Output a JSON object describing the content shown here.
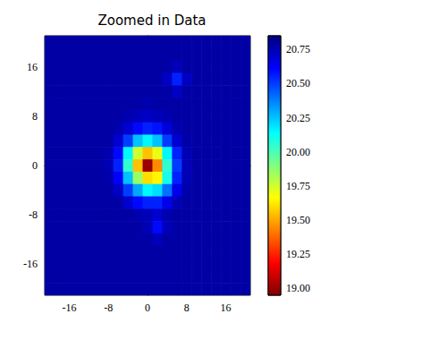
{
  "chart_data": {
    "type": "heatmap",
    "title": "Zoomed in Data",
    "x": [
      -20,
      -18,
      -16,
      -14,
      -12,
      -10,
      -8,
      -6,
      -4,
      -2,
      0,
      2,
      4,
      6,
      8,
      10,
      12,
      14,
      16,
      18,
      20
    ],
    "y": [
      20,
      18,
      16,
      14,
      12,
      10,
      8,
      6,
      4,
      2,
      0,
      -2,
      -4,
      -6,
      -8,
      -10,
      -12,
      -14,
      -16,
      -18,
      -20
    ],
    "z": [
      [
        20.78,
        20.78,
        20.78,
        20.78,
        20.78,
        20.78,
        20.78,
        20.78,
        20.78,
        20.78,
        20.78,
        20.78,
        20.78,
        20.78,
        20.78,
        20.78,
        20.78,
        20.78,
        20.78,
        20.78,
        20.78
      ],
      [
        20.78,
        20.78,
        20.78,
        20.78,
        20.78,
        20.78,
        20.78,
        20.78,
        20.78,
        20.78,
        20.78,
        20.78,
        20.78,
        20.78,
        20.78,
        20.78,
        20.78,
        20.78,
        20.78,
        20.78,
        20.78
      ],
      [
        20.78,
        20.78,
        20.78,
        20.78,
        20.78,
        20.78,
        20.78,
        20.78,
        20.78,
        20.78,
        20.78,
        20.78,
        20.78,
        20.74,
        20.78,
        20.78,
        20.78,
        20.78,
        20.78,
        20.78,
        20.78
      ],
      [
        20.78,
        20.78,
        20.78,
        20.78,
        20.78,
        20.78,
        20.78,
        20.78,
        20.78,
        20.78,
        20.78,
        20.78,
        20.72,
        20.55,
        20.72,
        20.78,
        20.78,
        20.78,
        20.78,
        20.78,
        20.78
      ],
      [
        20.78,
        20.78,
        20.78,
        20.78,
        20.78,
        20.78,
        20.78,
        20.78,
        20.78,
        20.78,
        20.78,
        20.78,
        20.78,
        20.72,
        20.78,
        20.78,
        20.78,
        20.78,
        20.78,
        20.78,
        20.78
      ],
      [
        20.78,
        20.78,
        20.78,
        20.78,
        20.78,
        20.78,
        20.78,
        20.78,
        20.78,
        20.78,
        20.76,
        20.78,
        20.78,
        20.78,
        20.78,
        20.78,
        20.78,
        20.78,
        20.78,
        20.78,
        20.78
      ],
      [
        20.78,
        20.78,
        20.78,
        20.78,
        20.78,
        20.78,
        20.78,
        20.78,
        20.76,
        20.74,
        20.72,
        20.74,
        20.76,
        20.78,
        20.78,
        20.78,
        20.78,
        20.78,
        20.78,
        20.78,
        20.78
      ],
      [
        20.78,
        20.78,
        20.78,
        20.78,
        20.78,
        20.78,
        20.78,
        20.76,
        20.7,
        20.6,
        20.55,
        20.58,
        20.68,
        20.76,
        20.78,
        20.78,
        20.78,
        20.78,
        20.78,
        20.78,
        20.78
      ],
      [
        20.78,
        20.78,
        20.78,
        20.78,
        20.78,
        20.78,
        20.78,
        20.7,
        20.5,
        20.25,
        20.15,
        20.25,
        20.5,
        20.7,
        20.77,
        20.78,
        20.78,
        20.78,
        20.78,
        20.78,
        20.78
      ],
      [
        20.78,
        20.78,
        20.78,
        20.78,
        20.78,
        20.78,
        20.76,
        20.6,
        20.15,
        19.75,
        19.55,
        19.7,
        20.15,
        20.55,
        20.75,
        20.78,
        20.78,
        20.78,
        20.78,
        20.78,
        20.78
      ],
      [
        20.78,
        20.78,
        20.78,
        20.78,
        20.78,
        20.78,
        20.75,
        20.55,
        20.05,
        19.55,
        19.0,
        19.45,
        20.05,
        20.5,
        20.74,
        20.78,
        20.78,
        20.78,
        20.78,
        20.78,
        20.78
      ],
      [
        20.78,
        20.78,
        20.78,
        20.78,
        20.78,
        20.78,
        20.77,
        20.62,
        20.25,
        19.85,
        19.6,
        19.65,
        20.1,
        20.55,
        20.75,
        20.78,
        20.78,
        20.78,
        20.78,
        20.78,
        20.78
      ],
      [
        20.78,
        20.78,
        20.78,
        20.78,
        20.78,
        20.78,
        20.78,
        20.72,
        20.5,
        20.3,
        20.15,
        20.2,
        20.4,
        20.65,
        20.77,
        20.78,
        20.78,
        20.78,
        20.78,
        20.78,
        20.78
      ],
      [
        20.78,
        20.78,
        20.78,
        20.78,
        20.78,
        20.78,
        20.78,
        20.78,
        20.7,
        20.6,
        20.55,
        20.55,
        20.65,
        20.75,
        20.78,
        20.78,
        20.78,
        20.78,
        20.78,
        20.78,
        20.78
      ],
      [
        20.78,
        20.78,
        20.78,
        20.78,
        20.78,
        20.78,
        20.78,
        20.78,
        20.78,
        20.76,
        20.74,
        20.7,
        20.76,
        20.78,
        20.78,
        20.78,
        20.78,
        20.78,
        20.78,
        20.78,
        20.78
      ],
      [
        20.78,
        20.78,
        20.78,
        20.78,
        20.78,
        20.78,
        20.78,
        20.78,
        20.78,
        20.78,
        20.75,
        20.6,
        20.74,
        20.78,
        20.78,
        20.78,
        20.78,
        20.78,
        20.78,
        20.78,
        20.78
      ],
      [
        20.78,
        20.78,
        20.78,
        20.78,
        20.78,
        20.78,
        20.78,
        20.78,
        20.78,
        20.78,
        20.78,
        20.74,
        20.78,
        20.78,
        20.78,
        20.78,
        20.78,
        20.78,
        20.78,
        20.78,
        20.78
      ],
      [
        20.78,
        20.78,
        20.78,
        20.78,
        20.78,
        20.78,
        20.78,
        20.78,
        20.78,
        20.78,
        20.78,
        20.78,
        20.78,
        20.78,
        20.78,
        20.78,
        20.78,
        20.78,
        20.78,
        20.78,
        20.78
      ],
      [
        20.78,
        20.78,
        20.78,
        20.78,
        20.78,
        20.78,
        20.78,
        20.78,
        20.78,
        20.78,
        20.78,
        20.78,
        20.78,
        20.78,
        20.78,
        20.78,
        20.78,
        20.78,
        20.78,
        20.78,
        20.78
      ],
      [
        20.78,
        20.78,
        20.78,
        20.78,
        20.78,
        20.78,
        20.78,
        20.78,
        20.78,
        20.78,
        20.78,
        20.78,
        20.78,
        20.78,
        20.78,
        20.78,
        20.78,
        20.78,
        20.78,
        20.78,
        20.78
      ],
      [
        20.78,
        20.78,
        20.78,
        20.78,
        20.78,
        20.78,
        20.78,
        20.78,
        20.78,
        20.78,
        20.78,
        20.78,
        20.78,
        20.78,
        20.78,
        20.78,
        20.78,
        20.78,
        20.78,
        20.78,
        20.78
      ]
    ],
    "xlim": [
      -21,
      21
    ],
    "ylim": [
      -21,
      21
    ],
    "xticks": [
      -16,
      -8,
      0,
      8,
      16
    ],
    "yticks": [
      -16,
      -8,
      0,
      8,
      16
    ],
    "colorbar": {
      "range": [
        18.95,
        20.85
      ],
      "ticks": [
        {
          "value": 19,
          "label": "19.00"
        },
        19.25,
        {
          "value": 19.5,
          "label": "19.50"
        },
        19.75,
        {
          "value": 20,
          "label": "20.00"
        },
        20.25,
        {
          "value": 20.5,
          "label": "20.50"
        },
        20.75
      ]
    }
  }
}
